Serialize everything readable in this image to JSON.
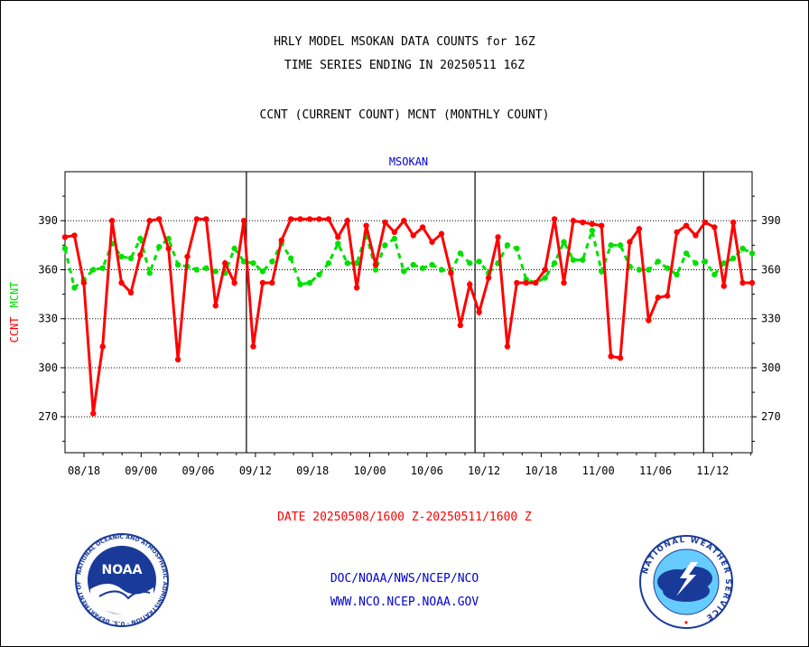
{
  "header": {
    "title_line1": "HRLY MODEL MSOKAN DATA COUNTS for 16Z",
    "title_line2": "TIME SERIES ENDING IN 20250511 16Z",
    "subtitle": "CCNT (CURRENT COUNT) MCNT (MONTHLY COUNT)"
  },
  "footer": {
    "date_range": "DATE 20250508/1600 Z-20250511/1600 Z",
    "org_path": "DOC/NOAA/NWS/NCEP/NCO",
    "website": "WWW.NCO.NCEP.NOAA.GOV"
  },
  "logos": {
    "noaa_text": "NOAA",
    "noaa_ring_text": "NATIONAL OCEANIC AND ATMOSPHERIC ADMINISTRATION · U.S. DEPARTMENT OF COMMERCE",
    "nws_ring_text": "NATIONAL WEATHER SERVICE"
  },
  "colors": {
    "ccnt": "#ff0000",
    "mcnt": "#00e000",
    "plot_label": "#0000cc"
  },
  "chart_data": {
    "type": "line",
    "plot_label": "MSOKAN",
    "ylabel_ccnt": "CCNT",
    "ylabel_mcnt": "MCNT",
    "ylim": [
      248,
      420
    ],
    "yticks": [
      270,
      300,
      330,
      360,
      390
    ],
    "x_tick_labels": [
      "08/18",
      "09/00",
      "09/06",
      "09/12",
      "09/18",
      "10/00",
      "10/06",
      "10/12",
      "10/18",
      "11/00",
      "11/06",
      "11/12"
    ],
    "grid": "horizontal dotted",
    "series": [
      {
        "name": "CCNT",
        "values": [
          380,
          381,
          352,
          272,
          313,
          390,
          352,
          346,
          369,
          390,
          391,
          373,
          305,
          368,
          391,
          391,
          338,
          364,
          352,
          390,
          313,
          352,
          352,
          378,
          391,
          391,
          391,
          391,
          391,
          380,
          390,
          349,
          387,
          363,
          389,
          383,
          390,
          381,
          386,
          377,
          382,
          358,
          326,
          351,
          334,
          355,
          380,
          313,
          352,
          352,
          352,
          360,
          391,
          352,
          390,
          389,
          388,
          387,
          307,
          306,
          377,
          385,
          329,
          343,
          344,
          383,
          387,
          381,
          389,
          386,
          350,
          389,
          352,
          352
        ]
      },
      {
        "name": "MCNT",
        "values": [
          373,
          349,
          354,
          360,
          361,
          376,
          368,
          367,
          379,
          358,
          374,
          379,
          363,
          362,
          360,
          361,
          359,
          358,
          373,
          365,
          364,
          359,
          365,
          376,
          367,
          351,
          352,
          357,
          364,
          376,
          364,
          364,
          382,
          360,
          375,
          379,
          359,
          363,
          361,
          363,
          360,
          359,
          370,
          364,
          365,
          358,
          364,
          375,
          373,
          354,
          352,
          355,
          364,
          377,
          366,
          366,
          384,
          359,
          375,
          375,
          362,
          360,
          360,
          365,
          361,
          357,
          370,
          364,
          365,
          357,
          364,
          367,
          373,
          370
        ]
      }
    ]
  }
}
